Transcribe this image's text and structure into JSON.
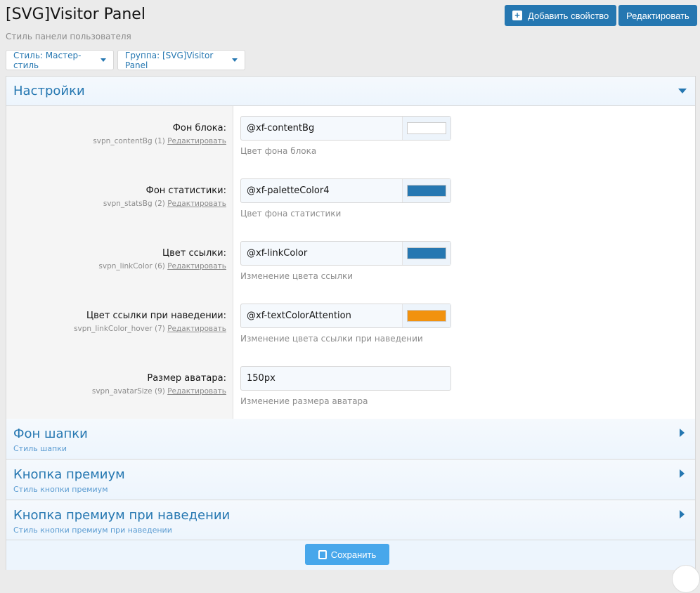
{
  "header": {
    "title": "[SVG]Visitor Panel",
    "subtitle": "Стиль панели пользователя",
    "add_property": "Добавить свойство",
    "edit": "Редактировать"
  },
  "filters": {
    "style": "Стиль: Мастер-стиль",
    "group": "Группа: [SVG]Visitor Panel"
  },
  "settings": {
    "title": "Настройки",
    "rows": [
      {
        "label": "Фон блока:",
        "key": "svpn_contentBg (1)",
        "edit": "Редактировать",
        "value": "@xf-contentBg",
        "swatch": "#ffffff",
        "explain": "Цвет фона блока"
      },
      {
        "label": "Фон статистики:",
        "key": "svpn_statsBg (2)",
        "edit": "Редактировать",
        "value": "@xf-paletteColor4",
        "swatch": "#2577b1",
        "explain": "Цвет фона статистики"
      },
      {
        "label": "Цвет ссылки:",
        "key": "svpn_linkColor (6)",
        "edit": "Редактировать",
        "value": "@xf-linkColor",
        "swatch": "#2577b1",
        "explain": "Изменение цвета ссылки"
      },
      {
        "label": "Цвет ссылки при наведении:",
        "key": "svpn_linkColor_hover (7)",
        "edit": "Редактировать",
        "value": "@xf-textColorAttention",
        "swatch": "#f1920f",
        "explain": "Изменение цвета ссылки при наведении"
      },
      {
        "label": "Размер аватара:",
        "key": "svpn_avatarSize (9)",
        "edit": "Редактировать",
        "value": "150px",
        "explain": "Изменение размера аватара"
      }
    ]
  },
  "sections": [
    {
      "title": "Фон шапки",
      "desc": "Стиль шапки"
    },
    {
      "title": "Кнопка премиум",
      "desc": "Стиль кнопки премиум"
    },
    {
      "title": "Кнопка премиум при наведении",
      "desc": "Стиль кнопки премиум при наведении"
    }
  ],
  "footer": {
    "save": "Сохранить"
  }
}
